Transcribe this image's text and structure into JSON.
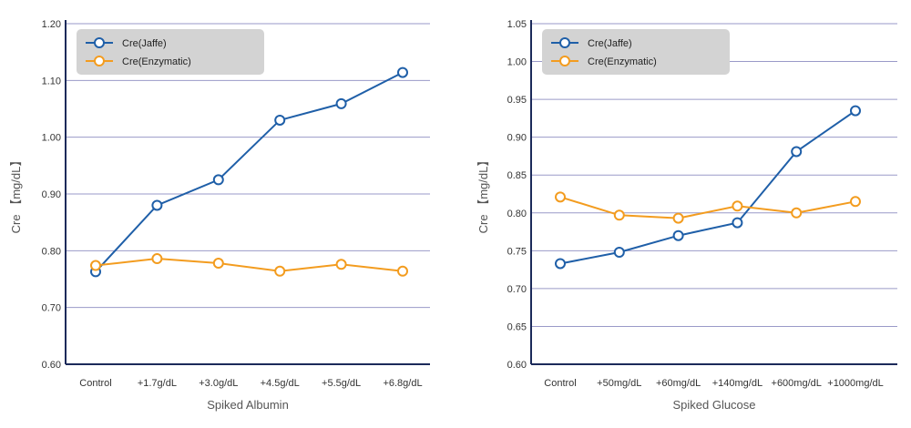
{
  "colors": {
    "jaffe": "#1f5fa8",
    "enzymatic": "#f39c1f",
    "axis": "#1c2a5a",
    "grid": "#9a9ac8",
    "legend_bg": "#d3d3d3"
  },
  "chart_data": [
    {
      "type": "line",
      "xlabel": "Spiked Albumin",
      "ylabel": "Cre 【mg/dL】",
      "categories": [
        "Control",
        "+1.7g/dL",
        "+3.0g/dL",
        "+4.5g/dL",
        "+5.5g/dL",
        "+6.8g/dL"
      ],
      "ylim": [
        0.6,
        1.2
      ],
      "yticks": [
        "0.60",
        "0.70",
        "0.80",
        "0.90",
        "1.00",
        "1.10",
        "1.20"
      ],
      "grid": true,
      "legend_position": "top-left",
      "series": [
        {
          "name": "Cre(Jaffe)",
          "color_key": "jaffe",
          "values": [
            0.763,
            0.88,
            0.925,
            1.03,
            1.059,
            1.114
          ]
        },
        {
          "name": "Cre(Enzymatic)",
          "color_key": "enzymatic",
          "values": [
            0.774,
            0.786,
            0.778,
            0.764,
            0.776,
            0.764
          ]
        }
      ]
    },
    {
      "type": "line",
      "xlabel": "Spiked Glucose",
      "ylabel": "Cre 【mg/dL】",
      "categories": [
        "Control",
        "+50mg/dL",
        "+60mg/dL",
        "+140mg/dL",
        "+600mg/dL",
        "+1000mg/dL"
      ],
      "ylim": [
        0.6,
        1.05
      ],
      "yticks": [
        "0.60",
        "0.65",
        "0.70",
        "0.75",
        "0.80",
        "0.85",
        "0.90",
        "0.95",
        "1.00",
        "1.05"
      ],
      "grid": true,
      "legend_position": "top-left",
      "series": [
        {
          "name": "Cre(Jaffe)",
          "color_key": "jaffe",
          "values": [
            0.733,
            0.748,
            0.77,
            0.787,
            0.881,
            0.935
          ]
        },
        {
          "name": "Cre(Enzymatic)",
          "color_key": "enzymatic",
          "values": [
            0.821,
            0.797,
            0.793,
            0.809,
            0.8,
            0.815
          ]
        }
      ]
    }
  ]
}
